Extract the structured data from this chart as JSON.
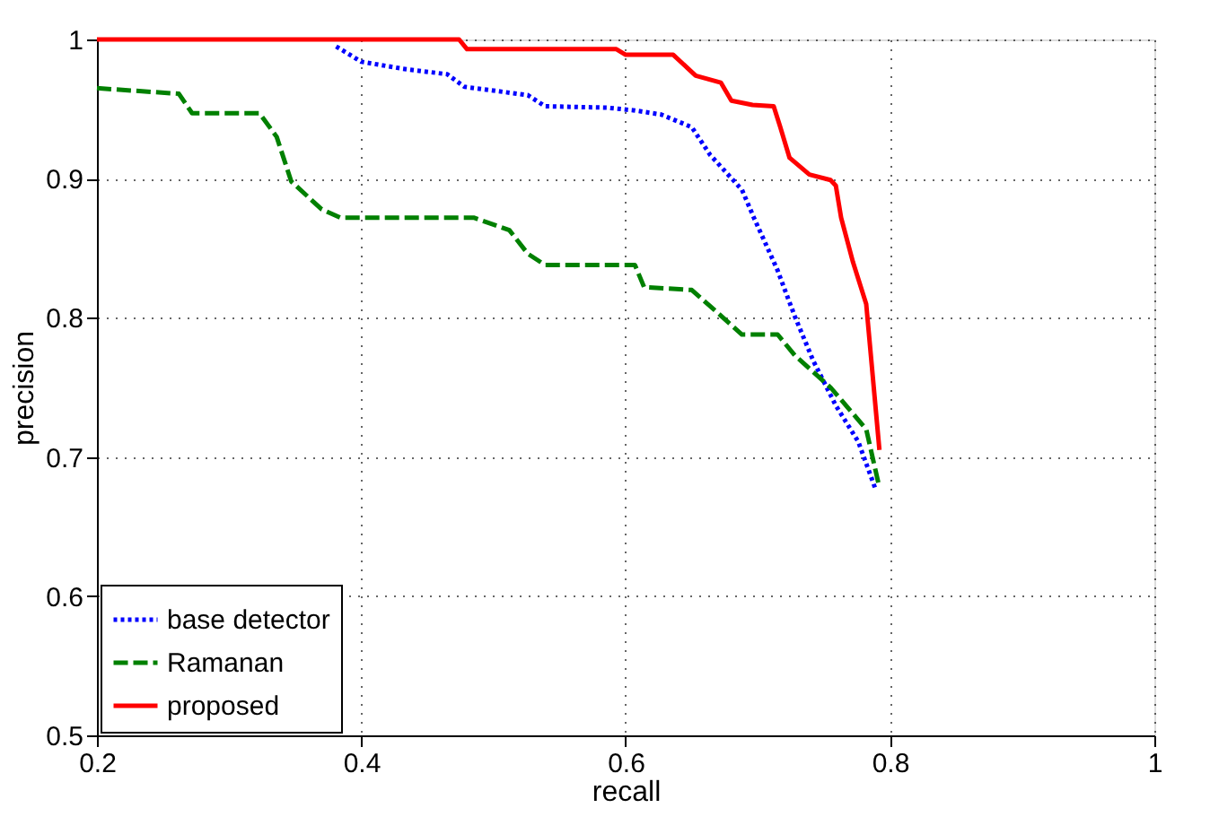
{
  "chart_data": {
    "type": "line",
    "xlabel": "recall",
    "ylabel": "precision",
    "xlim": [
      0.2,
      1
    ],
    "ylim": [
      0.5,
      1
    ],
    "xticks": [
      0.2,
      0.4,
      0.6,
      0.8,
      1
    ],
    "yticks": [
      0.5,
      0.6,
      0.7,
      0.8,
      0.9,
      1
    ],
    "grid": true,
    "legend": "bottom left",
    "series": [
      {
        "name": "base detector",
        "color": "#0000ff",
        "line_style": "dotted",
        "x": [
          0.381,
          0.4,
          0.431,
          0.465,
          0.478,
          0.526,
          0.539,
          0.586,
          0.607,
          0.627,
          0.65,
          0.664,
          0.688,
          0.697,
          0.715,
          0.728,
          0.742,
          0.759,
          0.776,
          0.789
        ],
        "values": [
          0.995,
          0.984,
          0.979,
          0.975,
          0.966,
          0.96,
          0.952,
          0.951,
          0.949,
          0.946,
          0.937,
          0.917,
          0.892,
          0.872,
          0.834,
          0.801,
          0.769,
          0.737,
          0.711,
          0.677
        ]
      },
      {
        "name": "Ramanan",
        "color": "#008000",
        "line_style": "dashed",
        "x": [
          0.2,
          0.262,
          0.272,
          0.323,
          0.336,
          0.347,
          0.37,
          0.384,
          0.485,
          0.512,
          0.526,
          0.539,
          0.607,
          0.614,
          0.65,
          0.668,
          0.688,
          0.715,
          0.728,
          0.755,
          0.782,
          0.792
        ],
        "values": [
          0.965,
          0.961,
          0.947,
          0.947,
          0.93,
          0.898,
          0.878,
          0.872,
          0.872,
          0.863,
          0.846,
          0.838,
          0.838,
          0.822,
          0.82,
          0.805,
          0.788,
          0.788,
          0.773,
          0.75,
          0.72,
          0.678
        ]
      },
      {
        "name": "proposed",
        "color": "#ff0000",
        "line_style": "solid",
        "x": [
          0.2,
          0.474,
          0.48,
          0.593,
          0.6,
          0.636,
          0.653,
          0.672,
          0.68,
          0.696,
          0.712,
          0.717,
          0.724,
          0.739,
          0.755,
          0.759,
          0.763,
          0.772,
          0.782,
          0.792
        ],
        "values": [
          1.0,
          1.0,
          0.993,
          0.993,
          0.989,
          0.989,
          0.974,
          0.969,
          0.956,
          0.953,
          0.952,
          0.937,
          0.915,
          0.903,
          0.899,
          0.895,
          0.872,
          0.84,
          0.81,
          0.705
        ]
      }
    ]
  }
}
